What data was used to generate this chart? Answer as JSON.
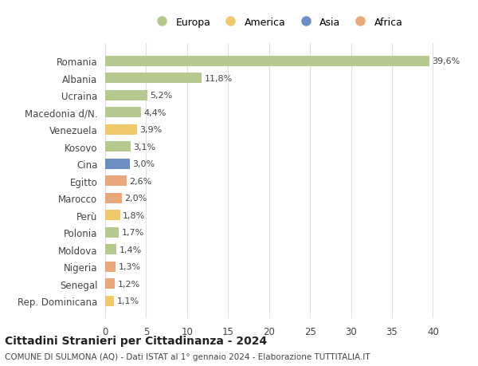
{
  "countries": [
    "Romania",
    "Albania",
    "Ucraina",
    "Macedonia d/N.",
    "Venezuela",
    "Kosovo",
    "Cina",
    "Egitto",
    "Marocco",
    "Perù",
    "Polonia",
    "Moldova",
    "Nigeria",
    "Senegal",
    "Rep. Dominicana"
  ],
  "values": [
    39.6,
    11.8,
    5.2,
    4.4,
    3.9,
    3.1,
    3.0,
    2.6,
    2.0,
    1.8,
    1.7,
    1.4,
    1.3,
    1.2,
    1.1
  ],
  "labels": [
    "39,6%",
    "11,8%",
    "5,2%",
    "4,4%",
    "3,9%",
    "3,1%",
    "3,0%",
    "2,6%",
    "2,0%",
    "1,8%",
    "1,7%",
    "1,4%",
    "1,3%",
    "1,2%",
    "1,1%"
  ],
  "continents": [
    "Europa",
    "Europa",
    "Europa",
    "Europa",
    "America",
    "Europa",
    "Asia",
    "Africa",
    "Africa",
    "America",
    "Europa",
    "Europa",
    "Africa",
    "Africa",
    "America"
  ],
  "continent_colors": {
    "Europa": "#b5c98e",
    "America": "#f0c96a",
    "Asia": "#6b8fc2",
    "Africa": "#e8a87c"
  },
  "legend_order": [
    "Europa",
    "America",
    "Asia",
    "Africa"
  ],
  "title": "Cittadini Stranieri per Cittadinanza - 2024",
  "subtitle": "COMUNE DI SULMONA (AQ) - Dati ISTAT al 1° gennaio 2024 - Elaborazione TUTTITALIA.IT",
  "xlim": [
    0,
    42
  ],
  "xticks": [
    0,
    5,
    10,
    15,
    20,
    25,
    30,
    35,
    40
  ],
  "bg_color": "#ffffff",
  "grid_color": "#e0e0e0"
}
